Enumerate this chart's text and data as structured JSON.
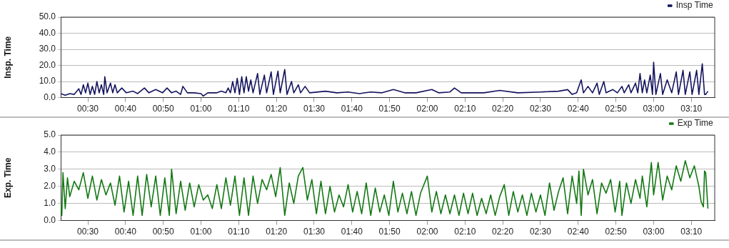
{
  "chart_data": [
    {
      "type": "line",
      "ylabel": "Insp. Time",
      "legend": "top right",
      "grid": "y",
      "xlim": [
        0.38,
        3.27
      ],
      "ylim": [
        0,
        50
      ],
      "xticks": [
        {
          "value": 0.5,
          "label": "00:30"
        },
        {
          "value": 0.6667,
          "label": "00:40"
        },
        {
          "value": 0.8333,
          "label": "00:50"
        },
        {
          "value": 1,
          "label": "01:00"
        },
        {
          "value": 1.1667,
          "label": "01:10"
        },
        {
          "value": 1.3333,
          "label": "01:20"
        },
        {
          "value": 1.5,
          "label": "01:30"
        },
        {
          "value": 1.6667,
          "label": "01:40"
        },
        {
          "value": 1.8333,
          "label": "01:50"
        },
        {
          "value": 2,
          "label": "02:00"
        },
        {
          "value": 2.1667,
          "label": "02:10"
        },
        {
          "value": 2.3333,
          "label": "02:20"
        },
        {
          "value": 2.5,
          "label": "02:30"
        },
        {
          "value": 2.6667,
          "label": "02:40"
        },
        {
          "value": 2.8333,
          "label": "02:50"
        },
        {
          "value": 3,
          "label": "03:00"
        },
        {
          "value": 3.1667,
          "label": "03:10"
        }
      ],
      "yticks": [
        {
          "value": 0,
          "label": "0.0"
        },
        {
          "value": 10,
          "label": "10.0"
        },
        {
          "value": 20,
          "label": "20.0"
        },
        {
          "value": 30,
          "label": "30.0"
        },
        {
          "value": 40,
          "label": "40.0"
        },
        {
          "value": 50,
          "label": "50.0"
        }
      ],
      "x": [
        0.38,
        0.4,
        0.42,
        0.44,
        0.46,
        0.47,
        0.48,
        0.49,
        0.5,
        0.51,
        0.52,
        0.53,
        0.54,
        0.55,
        0.56,
        0.57,
        0.575,
        0.585,
        0.6,
        0.61,
        0.62,
        0.63,
        0.65,
        0.67,
        0.7,
        0.72,
        0.75,
        0.77,
        0.8,
        0.83,
        0.85,
        0.87,
        0.89,
        0.91,
        0.92,
        0.94,
        0.97,
        1.0,
        1.01,
        1.03,
        1.07,
        1.09,
        1.11,
        1.12,
        1.13,
        1.14,
        1.15,
        1.16,
        1.17,
        1.18,
        1.19,
        1.2,
        1.21,
        1.22,
        1.23,
        1.25,
        1.26,
        1.28,
        1.29,
        1.31,
        1.32,
        1.34,
        1.35,
        1.37,
        1.38,
        1.4,
        1.41,
        1.43,
        1.44,
        1.46,
        1.48,
        1.55,
        1.6,
        1.65,
        1.7,
        1.75,
        1.8,
        1.85,
        1.9,
        1.95,
        2.02,
        2.05,
        2.1,
        2.12,
        2.15,
        2.25,
        2.32,
        2.4,
        2.5,
        2.58,
        2.62,
        2.64,
        2.66,
        2.68,
        2.69,
        2.71,
        2.73,
        2.75,
        2.76,
        2.78,
        2.79,
        2.82,
        2.84,
        2.86,
        2.87,
        2.89,
        2.9,
        2.92,
        2.93,
        2.94,
        2.95,
        2.96,
        2.97,
        2.985,
        2.995,
        3.0,
        3.01,
        3.03,
        3.04,
        3.06,
        3.08,
        3.1,
        3.11,
        3.13,
        3.14,
        3.16,
        3.17,
        3.19,
        3.2,
        3.215,
        3.225,
        3.23,
        3.24
      ],
      "series": [
        {
          "name": "Insp Time",
          "color": "#13135e",
          "values": [
            2.5,
            1.5,
            2.5,
            2,
            5.5,
            2,
            8,
            3,
            9,
            2,
            7,
            2,
            10,
            3,
            8,
            2,
            13,
            3,
            9,
            3,
            8,
            3,
            6,
            3,
            4,
            2.5,
            6,
            3,
            5,
            3,
            6,
            3,
            4,
            2,
            7,
            3,
            3,
            2.5,
            1,
            3,
            3,
            4,
            3,
            6,
            3,
            10,
            3,
            12,
            2,
            13,
            3,
            13,
            4,
            11,
            3,
            15,
            2,
            14,
            3,
            16,
            2,
            16.5,
            3,
            17.5,
            2,
            10,
            3,
            8,
            3,
            7,
            3,
            4,
            3,
            3.5,
            2.5,
            3.5,
            3,
            5,
            3,
            3,
            5,
            3,
            3.5,
            6,
            3,
            3,
            4.5,
            3,
            3.5,
            4,
            5,
            2,
            3,
            11,
            3,
            7,
            3,
            9,
            2,
            10,
            3,
            5,
            3,
            7,
            3,
            8,
            3,
            9,
            3,
            15,
            3,
            11,
            3,
            14,
            2,
            22,
            2,
            15,
            2,
            11,
            3,
            16,
            2,
            17,
            2,
            16,
            2,
            17,
            2,
            21,
            2,
            2,
            4
          ]
        }
      ]
    },
    {
      "type": "line",
      "ylabel": "Exp. Time",
      "legend": "top right",
      "grid": "y",
      "xlim": [
        0.38,
        3.27
      ],
      "ylim": [
        0,
        5
      ],
      "xticks": [
        {
          "value": 0.5,
          "label": "00:30"
        },
        {
          "value": 0.6667,
          "label": "00:40"
        },
        {
          "value": 0.8333,
          "label": "00:50"
        },
        {
          "value": 1,
          "label": "01:00"
        },
        {
          "value": 1.1667,
          "label": "01:10"
        },
        {
          "value": 1.3333,
          "label": "01:20"
        },
        {
          "value": 1.5,
          "label": "01:30"
        },
        {
          "value": 1.6667,
          "label": "01:40"
        },
        {
          "value": 1.8333,
          "label": "01:50"
        },
        {
          "value": 2,
          "label": "02:00"
        },
        {
          "value": 2.1667,
          "label": "02:10"
        },
        {
          "value": 2.3333,
          "label": "02:20"
        },
        {
          "value": 2.5,
          "label": "02:30"
        },
        {
          "value": 2.6667,
          "label": "02:40"
        },
        {
          "value": 2.8333,
          "label": "02:50"
        },
        {
          "value": 3,
          "label": "03:00"
        },
        {
          "value": 3.1667,
          "label": "03:10"
        }
      ],
      "yticks": [
        {
          "value": 0,
          "label": "0.0"
        },
        {
          "value": 1,
          "label": "1.0"
        },
        {
          "value": 2,
          "label": "2.0"
        },
        {
          "value": 3,
          "label": "3.0"
        },
        {
          "value": 4,
          "label": "4.0"
        },
        {
          "value": 5,
          "label": "5.0"
        }
      ],
      "x": [
        0.38,
        0.385,
        0.39,
        0.4,
        0.41,
        0.42,
        0.44,
        0.46,
        0.48,
        0.5,
        0.52,
        0.54,
        0.56,
        0.58,
        0.6,
        0.62,
        0.64,
        0.66,
        0.68,
        0.7,
        0.72,
        0.74,
        0.76,
        0.78,
        0.8,
        0.82,
        0.84,
        0.86,
        0.87,
        0.89,
        0.91,
        0.93,
        0.95,
        0.97,
        0.99,
        1.01,
        1.03,
        1.05,
        1.07,
        1.09,
        1.11,
        1.13,
        1.15,
        1.17,
        1.19,
        1.21,
        1.23,
        1.25,
        1.27,
        1.29,
        1.31,
        1.33,
        1.35,
        1.37,
        1.39,
        1.41,
        1.43,
        1.45,
        1.47,
        1.49,
        1.51,
        1.53,
        1.55,
        1.57,
        1.59,
        1.61,
        1.63,
        1.65,
        1.67,
        1.69,
        1.71,
        1.73,
        1.75,
        1.77,
        1.79,
        1.81,
        1.83,
        1.85,
        1.87,
        1.89,
        1.91,
        1.93,
        1.95,
        1.97,
        2.0,
        2.02,
        2.04,
        2.06,
        2.08,
        2.1,
        2.12,
        2.14,
        2.16,
        2.18,
        2.2,
        2.22,
        2.24,
        2.26,
        2.28,
        2.3,
        2.32,
        2.34,
        2.36,
        2.38,
        2.4,
        2.42,
        2.44,
        2.46,
        2.48,
        2.5,
        2.52,
        2.54,
        2.56,
        2.58,
        2.6,
        2.62,
        2.64,
        2.66,
        2.67,
        2.68,
        2.69,
        2.71,
        2.73,
        2.75,
        2.77,
        2.79,
        2.81,
        2.83,
        2.85,
        2.86,
        2.88,
        2.9,
        2.92,
        2.94,
        2.95,
        2.97,
        2.99,
        3.0,
        3.02,
        3.04,
        3.06,
        3.08,
        3.1,
        3.12,
        3.14,
        3.16,
        3.18,
        3.2,
        3.21,
        3.22,
        3.225,
        3.23,
        3.24
      ],
      "series": [
        {
          "name": "Exp Time",
          "color": "#137813",
          "values": [
            1.0,
            0.3,
            2.8,
            0.7,
            2.5,
            1.4,
            2.3,
            1.8,
            2.8,
            1.3,
            2.6,
            1.2,
            2.4,
            1.5,
            2.2,
            0.9,
            2.6,
            0.5,
            2.3,
            0.3,
            2.6,
            0.3,
            2.7,
            0.8,
            2.6,
            0.3,
            2.5,
            0.3,
            3.0,
            0.4,
            2.3,
            0.6,
            2.2,
            0.8,
            2.1,
            1.2,
            1.5,
            0.7,
            2.1,
            0.7,
            2.5,
            0.9,
            2.6,
            0.3,
            2.5,
            0.3,
            2.6,
            1.0,
            2.4,
            1.8,
            2.7,
            1.4,
            3.1,
            0.3,
            2.2,
            1.0,
            2.6,
            3.1,
            1.2,
            2.4,
            0.4,
            2.3,
            0.4,
            2.0,
            0.5,
            1.5,
            0.8,
            2.1,
            0.5,
            1.7,
            0.4,
            2.2,
            0.3,
            1.9,
            0.5,
            1.5,
            0.3,
            2.3,
            0.5,
            1.6,
            0.4,
            1.7,
            0.3,
            1.6,
            2.6,
            0.5,
            1.7,
            0.4,
            1.5,
            0.4,
            1.5,
            0.3,
            1.6,
            0.4,
            1.6,
            0.3,
            1.3,
            0.4,
            1.5,
            0.3,
            1.4,
            2.1,
            0.3,
            1.7,
            0.5,
            1.5,
            0.3,
            1.6,
            0.5,
            1.5,
            0.3,
            2.2,
            0.6,
            1.7,
            2.5,
            0.4,
            2.6,
            1.0,
            2.9,
            0.3,
            3.0,
            1.5,
            2.4,
            0.4,
            2.2,
            1.6,
            2.4,
            0.5,
            2.3,
            0.3,
            2.2,
            1.0,
            2.4,
            1.3,
            2.6,
            0.8,
            3.4,
            1.5,
            3.4,
            1.2,
            2.6,
            1.8,
            3.2,
            2.3,
            3.5,
            2.5,
            3.2,
            2.0,
            1.1,
            0.8,
            2.9,
            2.8,
            0.7
          ]
        }
      ]
    }
  ]
}
